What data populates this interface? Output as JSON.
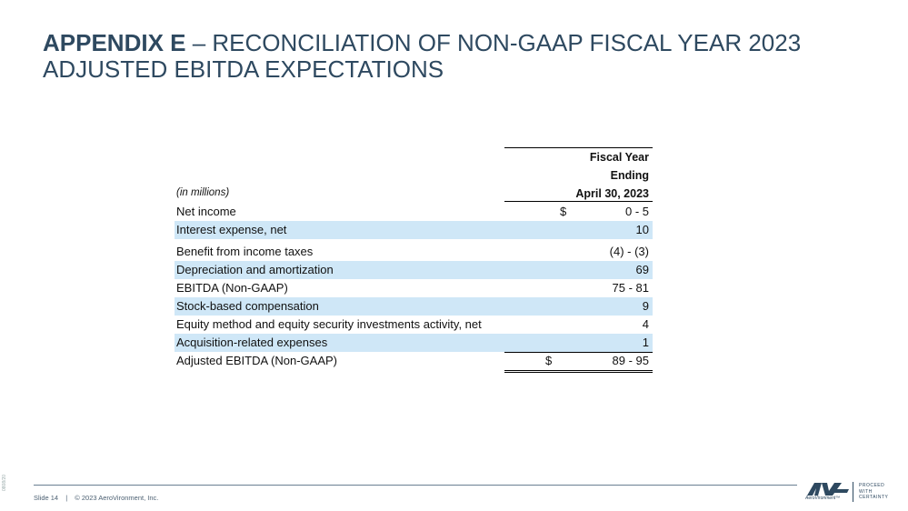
{
  "title": {
    "bold_part": "APPENDIX E",
    "rest_part": " – RECONCILIATION OF NON-GAAP FISCAL YEAR 2023 ADJUSTED EBITDA EXPECTATIONS"
  },
  "table": {
    "header_line1": "Fiscal Year",
    "header_line2": "Ending",
    "header_line3": "April 30, 2023",
    "units_label": "(in millions)",
    "rows": [
      {
        "label": "Net income",
        "dollar": "$",
        "value": "0 - 5"
      },
      {
        "label": "Interest expense, net",
        "dollar": "",
        "value": "10"
      },
      {
        "label": "Benefit from income taxes",
        "dollar": "",
        "value": "(4) - (3)"
      },
      {
        "label": "Depreciation and amortization",
        "dollar": "",
        "value": "69"
      },
      {
        "label": "EBITDA (Non-GAAP)",
        "dollar": "",
        "value": "75 - 81"
      },
      {
        "label": "Stock-based compensation",
        "dollar": "",
        "value": "9"
      },
      {
        "label": "Equity method and equity security investments activity, net",
        "dollar": "",
        "value": "4"
      },
      {
        "label": "Acquisition-related expenses",
        "dollar": "",
        "value": "1"
      },
      {
        "label": "Adjusted EBITDA (Non-GAAP)",
        "dollar": "$",
        "value": "89 - 95"
      }
    ]
  },
  "footer": {
    "slide": "Slide 14",
    "separator": "|",
    "copyright": "© 2023 AeroVironment, Inc.",
    "code": "0808/20",
    "logo_text": "AV",
    "logo_sub": "AeroVironment™",
    "tagline_1": "PROCEED",
    "tagline_2": "WITH",
    "tagline_3": "CERTAINTY"
  },
  "colors": {
    "title": "#2e4960",
    "row_shade": "#cfe7f7"
  }
}
